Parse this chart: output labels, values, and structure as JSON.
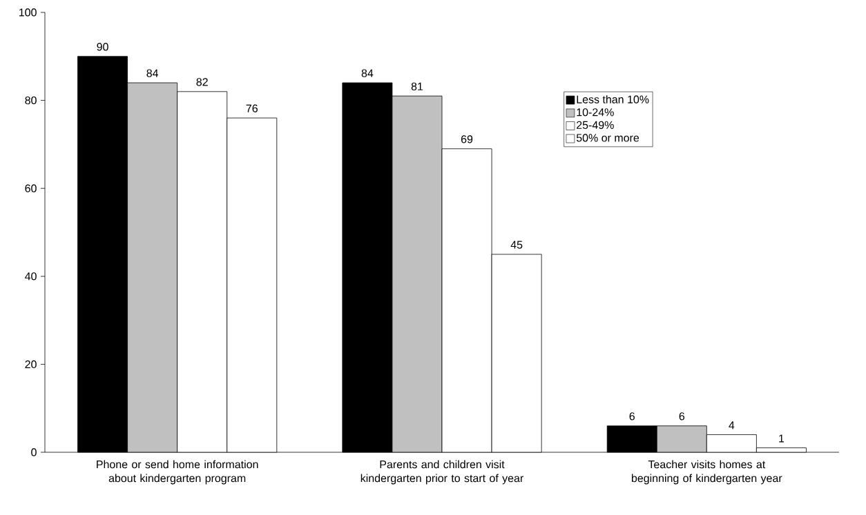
{
  "chart_data": {
    "type": "bar",
    "categories": [
      "Phone or send home information about kindergarten program",
      "Parents and children visit kindergarten prior to start of year",
      "Teacher visits homes at beginning of kindergarten year"
    ],
    "series": [
      {
        "name": "Less than 10%",
        "color": "#000000",
        "values": [
          90,
          84,
          6
        ]
      },
      {
        "name": "10-24%",
        "color": "#c0c0c0",
        "values": [
          84,
          81,
          6
        ]
      },
      {
        "name": "25-49%",
        "color": "#ffffff",
        "values": [
          82,
          69,
          4
        ]
      },
      {
        "name": "50% or more",
        "color": "#ffffff",
        "values": [
          76,
          45,
          1
        ]
      }
    ],
    "ylim": [
      0,
      100
    ],
    "yticks": [
      0,
      20,
      40,
      60,
      80,
      100
    ],
    "data_labels": true,
    "grid": false,
    "legend": "top right"
  }
}
